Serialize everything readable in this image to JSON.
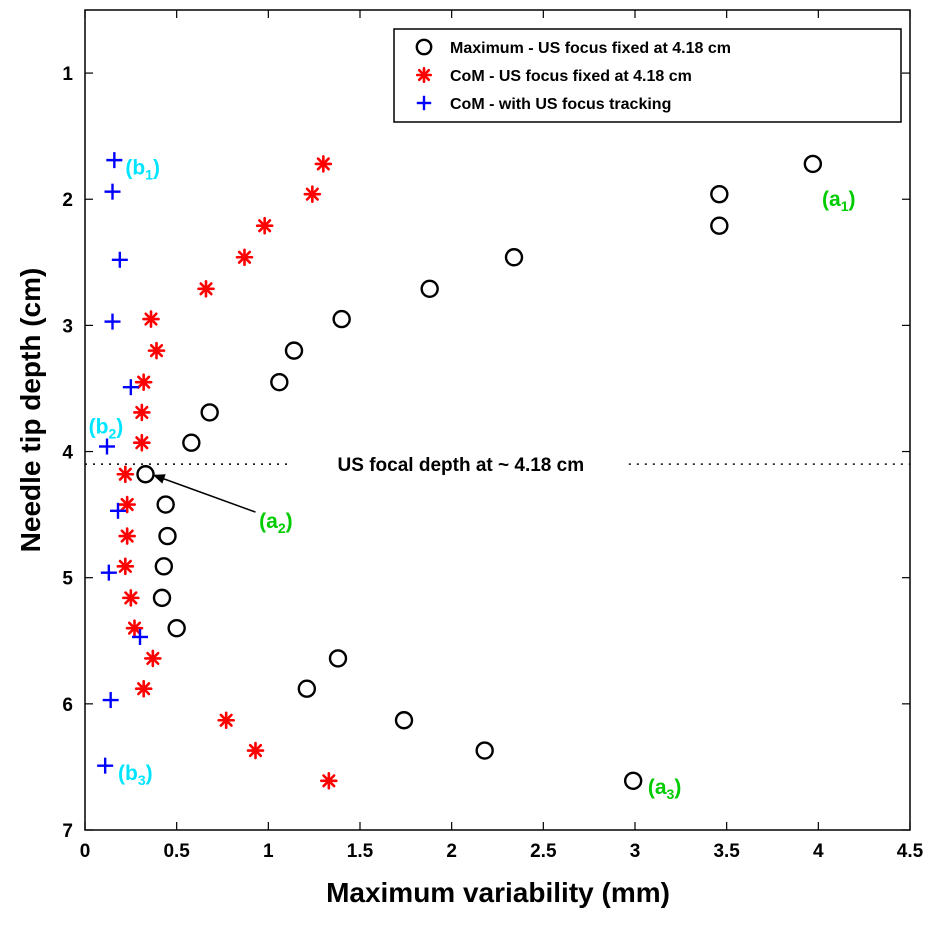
{
  "chart_data": {
    "type": "scatter",
    "title": "",
    "xlabel": "Maximum variability (mm)",
    "ylabel": "Needle tip depth (cm)",
    "xlim": [
      0,
      4.5
    ],
    "ylim": [
      7,
      0.5
    ],
    "y_axis_reversed": true,
    "xticks": [
      "0",
      "0.5",
      "1",
      "1.5",
      "2",
      "2.5",
      "3",
      "3.5",
      "4",
      "4.5"
    ],
    "yticks": [
      "1",
      "2",
      "3",
      "4",
      "5",
      "6",
      "7"
    ],
    "grid": false,
    "legend_position": "top-right",
    "series": [
      {
        "name": "Maximum - US focus fixed at 4.18 cm",
        "marker": "open-circle",
        "color": "#000000",
        "points": [
          {
            "x": 3.97,
            "y": 1.72
          },
          {
            "x": 3.46,
            "y": 1.96
          },
          {
            "x": 3.46,
            "y": 2.21
          },
          {
            "x": 2.34,
            "y": 2.46
          },
          {
            "x": 1.88,
            "y": 2.71
          },
          {
            "x": 1.4,
            "y": 2.95
          },
          {
            "x": 1.14,
            "y": 3.2
          },
          {
            "x": 1.06,
            "y": 3.45
          },
          {
            "x": 0.68,
            "y": 3.69
          },
          {
            "x": 0.58,
            "y": 3.93
          },
          {
            "x": 0.33,
            "y": 4.18
          },
          {
            "x": 0.44,
            "y": 4.42
          },
          {
            "x": 0.45,
            "y": 4.67
          },
          {
            "x": 0.43,
            "y": 4.91
          },
          {
            "x": 0.42,
            "y": 5.16
          },
          {
            "x": 0.5,
            "y": 5.4
          },
          {
            "x": 1.38,
            "y": 5.64
          },
          {
            "x": 1.21,
            "y": 5.88
          },
          {
            "x": 1.74,
            "y": 6.13
          },
          {
            "x": 2.18,
            "y": 6.37
          },
          {
            "x": 2.99,
            "y": 6.61
          }
        ]
      },
      {
        "name": "CoM - US focus fixed at 4.18 cm",
        "marker": "asterisk",
        "color": "#ff0000",
        "points": [
          {
            "x": 1.3,
            "y": 1.72
          },
          {
            "x": 1.24,
            "y": 1.96
          },
          {
            "x": 0.98,
            "y": 2.21
          },
          {
            "x": 0.87,
            "y": 2.46
          },
          {
            "x": 0.66,
            "y": 2.71
          },
          {
            "x": 0.36,
            "y": 2.95
          },
          {
            "x": 0.39,
            "y": 3.2
          },
          {
            "x": 0.32,
            "y": 3.45
          },
          {
            "x": 0.31,
            "y": 3.69
          },
          {
            "x": 0.31,
            "y": 3.93
          },
          {
            "x": 0.22,
            "y": 4.18
          },
          {
            "x": 0.23,
            "y": 4.42
          },
          {
            "x": 0.23,
            "y": 4.67
          },
          {
            "x": 0.22,
            "y": 4.91
          },
          {
            "x": 0.25,
            "y": 5.16
          },
          {
            "x": 0.27,
            "y": 5.4
          },
          {
            "x": 0.37,
            "y": 5.64
          },
          {
            "x": 0.32,
            "y": 5.88
          },
          {
            "x": 0.77,
            "y": 6.13
          },
          {
            "x": 0.93,
            "y": 6.37
          },
          {
            "x": 1.33,
            "y": 6.61
          }
        ]
      },
      {
        "name": "CoM - with US focus tracking",
        "marker": "plus",
        "color": "#0000ff",
        "points": [
          {
            "x": 0.16,
            "y": 1.69
          },
          {
            "x": 0.15,
            "y": 1.94
          },
          {
            "x": 0.19,
            "y": 2.48
          },
          {
            "x": 0.15,
            "y": 2.97
          },
          {
            "x": 0.25,
            "y": 3.49
          },
          {
            "x": 0.12,
            "y": 3.96
          },
          {
            "x": 0.18,
            "y": 4.47
          },
          {
            "x": 0.13,
            "y": 4.96
          },
          {
            "x": 0.3,
            "y": 5.47
          },
          {
            "x": 0.14,
            "y": 5.97
          },
          {
            "x": 0.11,
            "y": 6.49
          }
        ]
      }
    ],
    "reference_line": {
      "y": 4.1,
      "style": "dotted",
      "label": "US focal depth at ~ 4.18 cm",
      "label_x": 2.05
    },
    "annotations": [
      {
        "main": "(a",
        "sub": "1",
        "close": ")",
        "color": "#00cc00",
        "x": 4.02,
        "y": 2.0
      },
      {
        "main": "(a",
        "sub": "2",
        "close": ")",
        "color": "#00cc00",
        "x": 0.95,
        "y": 4.55
      },
      {
        "main": "(a",
        "sub": "3",
        "close": ")",
        "color": "#00cc00",
        "x": 3.07,
        "y": 6.66
      },
      {
        "main": "(b",
        "sub": "1",
        "close": ")",
        "color": "#00e5ff",
        "x": 0.22,
        "y": 1.75
      },
      {
        "main": "(b",
        "sub": "2",
        "close": ")",
        "color": "#00e5ff",
        "x": 0.02,
        "y": 3.8
      },
      {
        "main": "(b",
        "sub": "3",
        "close": ")",
        "color": "#00e5ff",
        "x": 0.18,
        "y": 6.55
      }
    ],
    "arrow": {
      "from_x": 0.93,
      "from_y": 4.48,
      "to_x": 0.38,
      "to_y": 4.19
    }
  }
}
